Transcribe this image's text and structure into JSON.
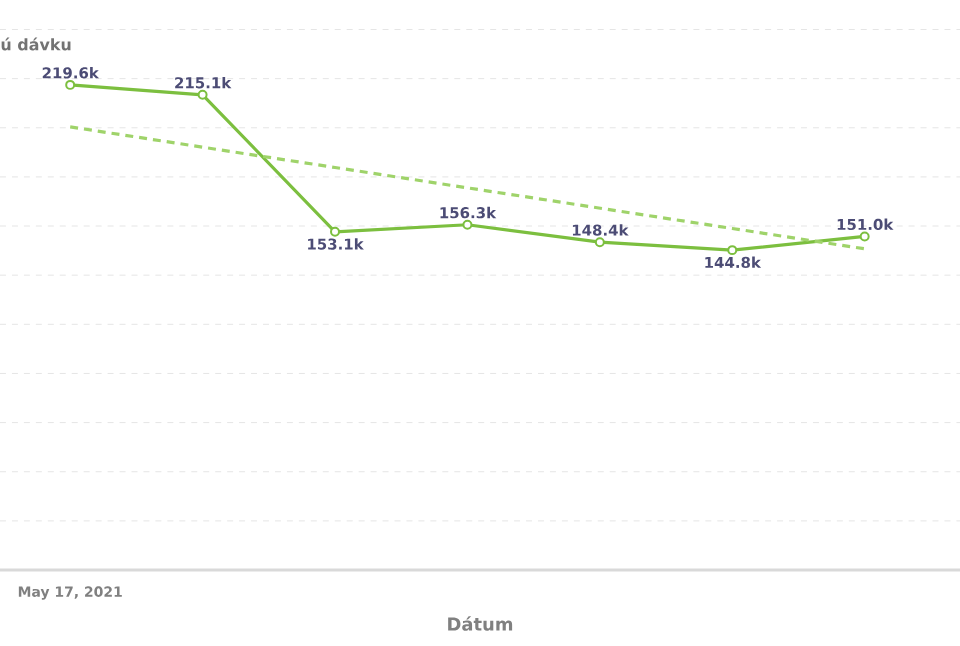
{
  "chart_data": {
    "type": "line",
    "title": "ú dávku",
    "categories": [
      null,
      null,
      null,
      null,
      null,
      null,
      null
    ],
    "annotations": [
      "May 17, 2021",
      "Dátum"
    ],
    "grid": "y",
    "marker": "circle",
    "series": [
      {
        "color": "#7cbf3f",
        "values": [
          219.6,
          215.1,
          153.1,
          156.3,
          148.4,
          144.8,
          151.0
        ],
        "value_labels": [
          "219.6k",
          "215.1k",
          "153.1k",
          "156.3k",
          "148.4k",
          "144.8k",
          "151.0k"
        ]
      },
      {
        "type": "line",
        "color": "#9fd36a",
        "line_style": "dashed",
        "marker": "none",
        "values": [
          200.6,
          191.4,
          182.2,
          173.0,
          163.8,
          154.6,
          145.4
        ]
      }
    ]
  }
}
